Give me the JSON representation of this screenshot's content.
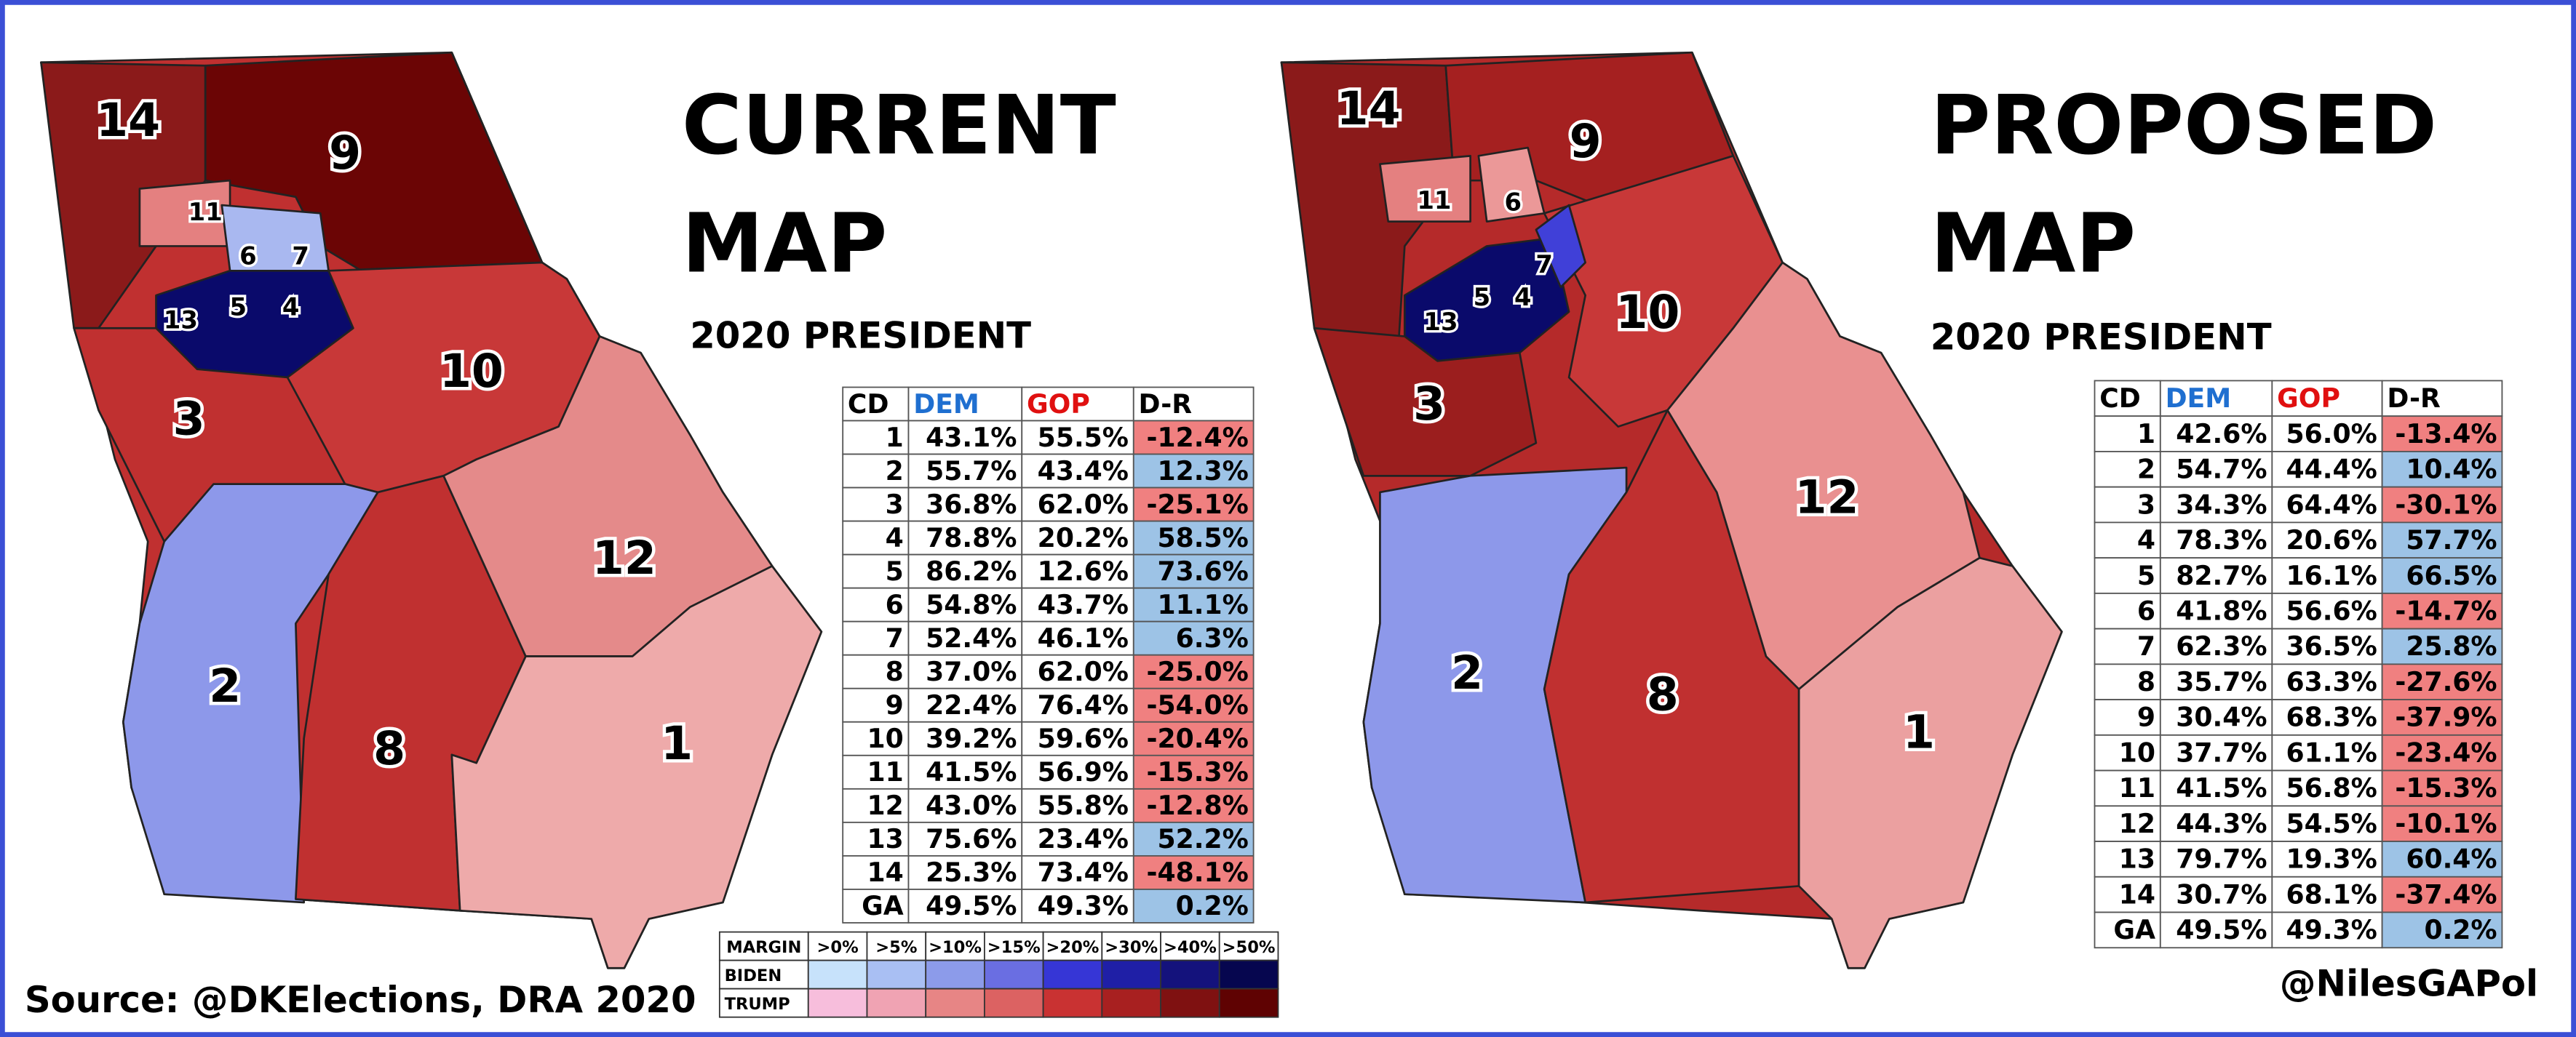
{
  "maps": [
    {
      "title_lines": [
        "CURRENT",
        "MAP"
      ],
      "subtitle": "2020 PRESIDENT",
      "district_labels": [
        "14",
        "9",
        "11",
        "6",
        "7",
        "13",
        "5",
        "4",
        "10",
        "3",
        "12",
        "2",
        "8",
        "1"
      ],
      "table": {
        "header": [
          "CD",
          "DEM",
          "GOP",
          "D-R"
        ],
        "rows": [
          [
            "1",
            "43.1%",
            "55.5%",
            "-12.4%"
          ],
          [
            "2",
            "55.7%",
            "43.4%",
            "12.3%"
          ],
          [
            "3",
            "36.8%",
            "62.0%",
            "-25.1%"
          ],
          [
            "4",
            "78.8%",
            "20.2%",
            "58.5%"
          ],
          [
            "5",
            "86.2%",
            "12.6%",
            "73.6%"
          ],
          [
            "6",
            "54.8%",
            "43.7%",
            "11.1%"
          ],
          [
            "7",
            "52.4%",
            "46.1%",
            "6.3%"
          ],
          [
            "8",
            "37.0%",
            "62.0%",
            "-25.0%"
          ],
          [
            "9",
            "22.4%",
            "76.4%",
            "-54.0%"
          ],
          [
            "10",
            "39.2%",
            "59.6%",
            "-20.4%"
          ],
          [
            "11",
            "41.5%",
            "56.9%",
            "-15.3%"
          ],
          [
            "12",
            "43.0%",
            "55.8%",
            "-12.8%"
          ],
          [
            "13",
            "75.6%",
            "23.4%",
            "52.2%"
          ],
          [
            "14",
            "25.3%",
            "73.4%",
            "-48.1%"
          ],
          [
            "GA",
            "49.5%",
            "49.3%",
            "0.2%"
          ]
        ]
      }
    },
    {
      "title_lines": [
        "PROPOSED",
        "MAP"
      ],
      "subtitle": "2020 PRESIDENT",
      "district_labels": [
        "14",
        "9",
        "11",
        "6",
        "7",
        "13",
        "5",
        "4",
        "10",
        "3",
        "12",
        "2",
        "8",
        "1"
      ],
      "table": {
        "header": [
          "CD",
          "DEM",
          "GOP",
          "D-R"
        ],
        "rows": [
          [
            "1",
            "42.6%",
            "56.0%",
            "-13.4%"
          ],
          [
            "2",
            "54.7%",
            "44.4%",
            "10.4%"
          ],
          [
            "3",
            "34.3%",
            "64.4%",
            "-30.1%"
          ],
          [
            "4",
            "78.3%",
            "20.6%",
            "57.7%"
          ],
          [
            "5",
            "82.7%",
            "16.1%",
            "66.5%"
          ],
          [
            "6",
            "41.8%",
            "56.6%",
            "-14.7%"
          ],
          [
            "7",
            "62.3%",
            "36.5%",
            "25.8%"
          ],
          [
            "8",
            "35.7%",
            "63.3%",
            "-27.6%"
          ],
          [
            "9",
            "30.4%",
            "68.3%",
            "-37.9%"
          ],
          [
            "10",
            "37.7%",
            "61.1%",
            "-23.4%"
          ],
          [
            "11",
            "41.5%",
            "56.8%",
            "-15.3%"
          ],
          [
            "12",
            "44.3%",
            "54.5%",
            "-10.1%"
          ],
          [
            "13",
            "79.7%",
            "19.3%",
            "60.4%"
          ],
          [
            "14",
            "30.7%",
            "68.1%",
            "-37.4%"
          ],
          [
            "GA",
            "49.5%",
            "49.3%",
            "0.2%"
          ]
        ]
      }
    }
  ],
  "legend": {
    "header": [
      "MARGIN",
      ">0%",
      ">5%",
      ">10%",
      ">15%",
      ">20%",
      ">30%",
      ">40%",
      ">50%"
    ],
    "rows": [
      {
        "name": "BIDEN",
        "colors": [
          "#c7e2fb",
          "#a9bff3",
          "#8c9bea",
          "#6a6ee2",
          "#3636d6",
          "#1f1fa6",
          "#14127c",
          "#06064f"
        ]
      },
      {
        "name": "TRUMP",
        "colors": [
          "#f7bedc",
          "#f0a3b3",
          "#e78585",
          "#dc6262",
          "#c93232",
          "#a82020",
          "#7f1111",
          "#5f0202"
        ]
      }
    ]
  },
  "source": "Source: @DKElections, DRA 2020",
  "credit": "@NilesGAPol"
}
